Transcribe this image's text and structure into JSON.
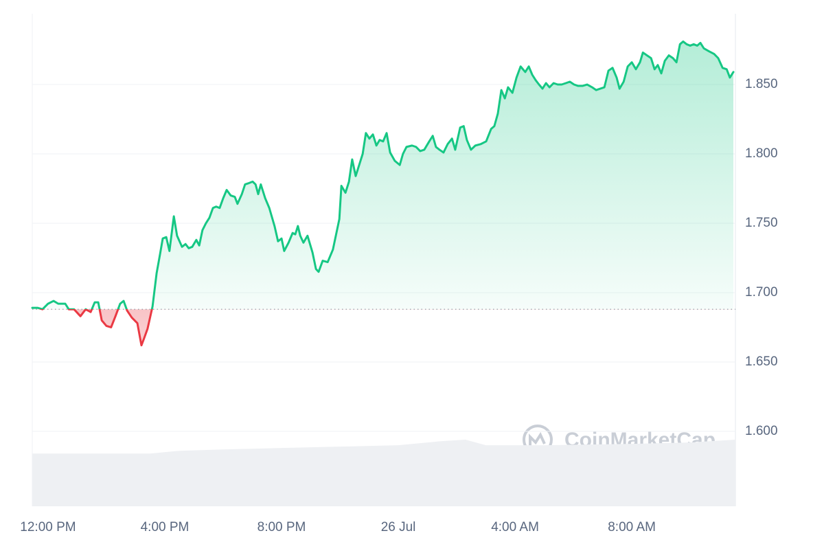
{
  "chart_data": {
    "type": "line",
    "x": [
      -0.54,
      -0.35,
      -0.19,
      0,
      0.19,
      0.35,
      0.59,
      0.71,
      0.89,
      1.11,
      1.29,
      1.46,
      1.6,
      1.72,
      1.84,
      2,
      2.16,
      2.31,
      2.47,
      2.59,
      2.71,
      2.87,
      3.06,
      3.2,
      3.29,
      3.41,
      3.58,
      3.72,
      3.84,
      3.93,
      4.05,
      4.16,
      4.31,
      4.42,
      4.59,
      4.71,
      4.82,
      4.94,
      5.08,
      5.18,
      5.29,
      5.41,
      5.53,
      5.65,
      5.76,
      5.88,
      6,
      6.12,
      6.26,
      6.4,
      6.49,
      6.64,
      6.75,
      6.89,
      7.01,
      7.11,
      7.2,
      7.29,
      7.44,
      7.58,
      7.76,
      7.88,
      8,
      8.09,
      8.24,
      8.38,
      8.47,
      8.56,
      8.64,
      8.75,
      8.89,
      9.06,
      9.18,
      9.27,
      9.41,
      9.58,
      9.76,
      9.88,
      9.98,
      10.05,
      10.19,
      10.31,
      10.42,
      10.54,
      10.66,
      10.78,
      10.89,
      11.01,
      11.13,
      11.25,
      11.36,
      11.48,
      11.6,
      11.72,
      11.88,
      12.05,
      12.16,
      12.28,
      12.47,
      12.61,
      12.75,
      12.89,
      13.06,
      13.18,
      13.29,
      13.41,
      13.55,
      13.69,
      13.84,
      13.95,
      14.12,
      14.24,
      14.35,
      14.49,
      14.64,
      14.82,
      15.01,
      15.18,
      15.29,
      15.41,
      15.53,
      15.65,
      15.76,
      15.91,
      16.05,
      16.19,
      16.35,
      16.47,
      16.59,
      16.71,
      16.82,
      16.94,
      17.06,
      17.18,
      17.32,
      17.46,
      17.6,
      17.74,
      17.88,
      18.02,
      18.16,
      18.31,
      18.47,
      18.64,
      18.78,
      18.92,
      19.06,
      19.2,
      19.34,
      19.48,
      19.58,
      19.72,
      19.86,
      20,
      20.14,
      20.28,
      20.38,
      20.52,
      20.66,
      20.78,
      20.89,
      21.01,
      21.13,
      21.27,
      21.41,
      21.53,
      21.65,
      21.76,
      21.88,
      22,
      22.12,
      22.24,
      22.35,
      22.47,
      22.64,
      22.82,
      22.96,
      23.11,
      23.25,
      23.36,
      23.48
    ],
    "values": [
      1.689,
      1.689,
      1.688,
      1.692,
      1.694,
      1.692,
      1.692,
      1.688,
      1.688,
      1.683,
      1.688,
      1.686,
      1.693,
      1.693,
      1.68,
      1.676,
      1.675,
      1.683,
      1.692,
      1.694,
      1.687,
      1.682,
      1.678,
      1.662,
      1.667,
      1.674,
      1.69,
      1.714,
      1.728,
      1.739,
      1.74,
      1.73,
      1.755,
      1.741,
      1.733,
      1.735,
      1.732,
      1.733,
      1.738,
      1.734,
      1.745,
      1.75,
      1.754,
      1.761,
      1.762,
      1.761,
      1.768,
      1.774,
      1.77,
      1.769,
      1.764,
      1.771,
      1.778,
      1.779,
      1.78,
      1.778,
      1.771,
      1.778,
      1.768,
      1.761,
      1.748,
      1.737,
      1.739,
      1.73,
      1.736,
      1.743,
      1.742,
      1.748,
      1.741,
      1.736,
      1.741,
      1.729,
      1.717,
      1.715,
      1.723,
      1.722,
      1.731,
      1.743,
      1.753,
      1.777,
      1.772,
      1.78,
      1.796,
      1.784,
      1.792,
      1.8,
      1.815,
      1.811,
      1.814,
      1.806,
      1.81,
      1.809,
      1.815,
      1.801,
      1.795,
      1.792,
      1.8,
      1.805,
      1.806,
      1.805,
      1.802,
      1.803,
      1.809,
      1.813,
      1.805,
      1.803,
      1.801,
      1.807,
      1.811,
      1.803,
      1.819,
      1.82,
      1.81,
      1.803,
      1.806,
      1.807,
      1.809,
      1.818,
      1.82,
      1.829,
      1.846,
      1.84,
      1.848,
      1.844,
      1.855,
      1.863,
      1.859,
      1.863,
      1.857,
      1.853,
      1.85,
      1.847,
      1.851,
      1.848,
      1.851,
      1.85,
      1.85,
      1.851,
      1.852,
      1.85,
      1.849,
      1.849,
      1.85,
      1.848,
      1.846,
      1.847,
      1.848,
      1.86,
      1.862,
      1.855,
      1.847,
      1.852,
      1.863,
      1.866,
      1.861,
      1.866,
      1.873,
      1.871,
      1.869,
      1.861,
      1.864,
      1.858,
      1.867,
      1.871,
      1.869,
      1.866,
      1.879,
      1.881,
      1.879,
      1.878,
      1.879,
      1.878,
      1.88,
      1.876,
      1.874,
      1.872,
      1.869,
      1.862,
      1.861,
      1.855,
      1.859
    ],
    "color": "#16c784",
    "down_color": "#ea3943",
    "baseline": 1.688,
    "volume": {
      "x": [
        -0.54,
        3.5,
        4.5,
        6,
        8,
        10,
        12,
        13.5,
        14.3,
        15,
        17,
        20,
        22,
        23.55
      ],
      "values": [
        1.584,
        1.584,
        1.586,
        1.587,
        1.588,
        1.589,
        1.59,
        1.593,
        1.594,
        1.59,
        1.59,
        1.591,
        1.592,
        1.594
      ],
      "color": "#eef0f3"
    },
    "xlim": [
      -0.54,
      23.55
    ],
    "xticks": [
      {
        "value": 0,
        "label": "12:00 PM"
      },
      {
        "value": 4,
        "label": "4:00 PM"
      },
      {
        "value": 8,
        "label": "8:00 PM"
      },
      {
        "value": 12,
        "label": "26 Jul"
      },
      {
        "value": 16,
        "label": "4:00 AM"
      },
      {
        "value": 20,
        "label": "8:00 AM"
      }
    ],
    "ylim": [
      1.546,
      1.901
    ],
    "yticks": [
      {
        "value": 1.6,
        "label": "1.600"
      },
      {
        "value": 1.65,
        "label": "1.650"
      },
      {
        "value": 1.7,
        "label": "1.700"
      },
      {
        "value": 1.75,
        "label": "1.750"
      },
      {
        "value": 1.8,
        "label": "1.800"
      },
      {
        "value": 1.85,
        "label": "1.850"
      }
    ],
    "grid": true,
    "watermark": "CoinMarketCap"
  }
}
